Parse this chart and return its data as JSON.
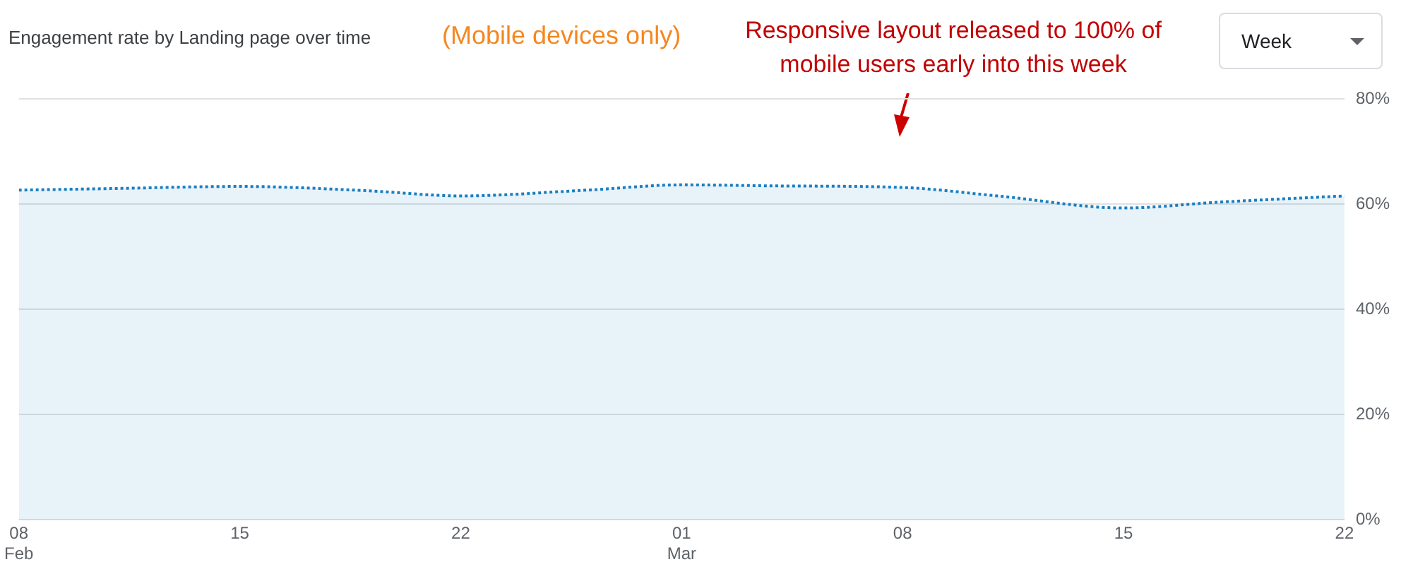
{
  "chart_data": {
    "type": "area",
    "title": "Engagement rate by Landing page over time",
    "subtitle": "(Mobile devices only)",
    "annotations": [
      "Responsive layout released to 100% of mobile users early into this week",
      "Week"
    ],
    "x": [
      "--02-08",
      "--02-11",
      "--02-15",
      "--02-19",
      "--02-22",
      "--02-26",
      "--03-01",
      "--03-04",
      "--03-08",
      "--03-11",
      "--03-15",
      "--03-18",
      "--03-22"
    ],
    "series": [
      {
        "color": "#1a7fc0",
        "values": [
          62.7,
          63.0,
          63.4,
          62.6,
          61.6,
          62.7,
          63.7,
          63.5,
          63.2,
          61.6,
          59.3,
          60.4,
          61.6
        ]
      }
    ],
    "xlim": [
      "--02-08",
      "--03-22"
    ],
    "xticks": [
      {
        "value": "--02-08",
        "label": "08 Feb"
      },
      {
        "value": "--02-15",
        "label": "15"
      },
      {
        "value": "--02-22",
        "label": "22"
      },
      {
        "value": "--03-01",
        "label": "01 Mar"
      },
      {
        "value": "--03-08",
        "label": "08"
      },
      {
        "value": "--03-15",
        "label": "15"
      },
      {
        "value": "--03-22",
        "label": "22"
      }
    ],
    "ylim": [
      0,
      80
    ],
    "yticks": [
      {
        "value": 0,
        "label": "0%"
      },
      {
        "value": 20,
        "label": "20%"
      },
      {
        "value": 40,
        "label": "40%"
      },
      {
        "value": 60,
        "label": "60%"
      },
      {
        "value": 80,
        "label": "80%"
      }
    ],
    "grid": "y",
    "legend": false,
    "line_style": "dotted"
  }
}
